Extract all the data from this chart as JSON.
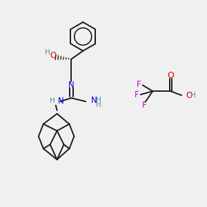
{
  "bg_color": "#f0f0f0",
  "bond_color": "#1a1a1a",
  "N_color": "#0000dd",
  "O_color": "#dd0000",
  "F_color": "#cc00cc",
  "H_color": "#4d9090",
  "line_width": 1.4,
  "figsize": [
    3.0,
    3.0
  ],
  "dpi": 100,
  "xlim": [
    0,
    300
  ],
  "ylim": [
    0,
    300
  ]
}
